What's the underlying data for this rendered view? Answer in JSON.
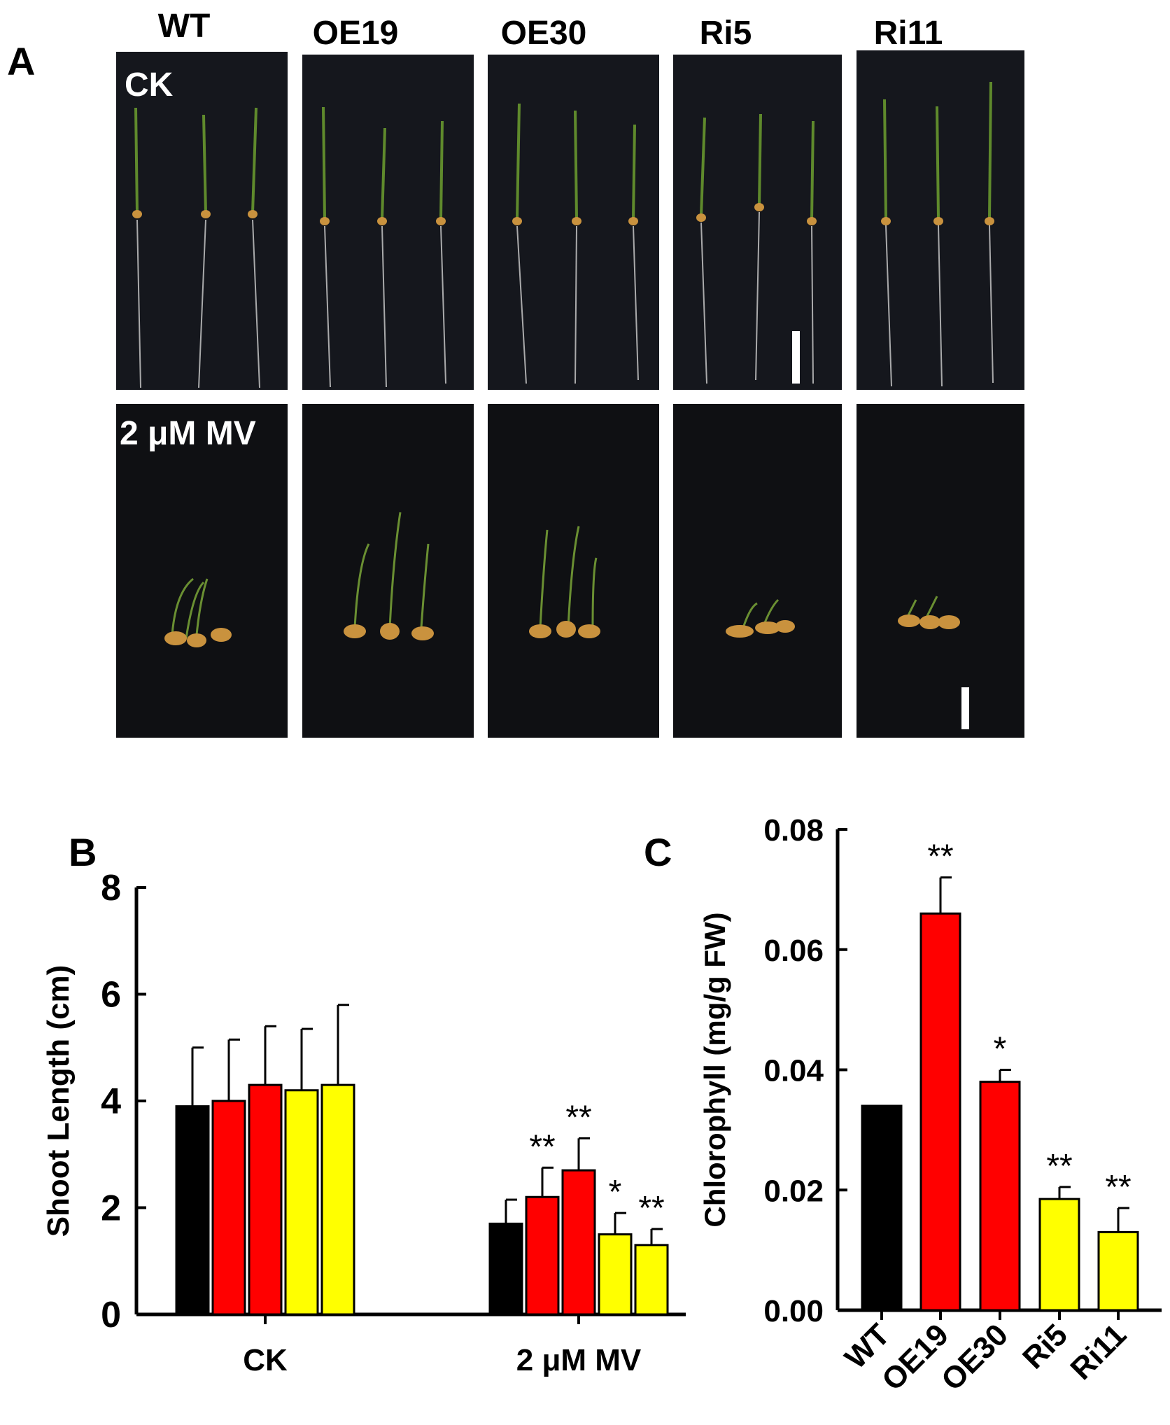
{
  "panel_labels": {
    "a": "A",
    "b": "B",
    "c": "C"
  },
  "genotypes": [
    "WT",
    "OE19",
    "OE30",
    "Ri5",
    "Ri11"
  ],
  "conditions": [
    "CK",
    "2 μM MV"
  ],
  "colors": {
    "WT": "#000000",
    "OE19": "#ff0000",
    "OE30": "#ff0000",
    "Ri5": "#ffff00",
    "Ri11": "#ffff00",
    "photo_bg": "#15171d",
    "seedling_shoot": "#5f8a2c",
    "seed": "#c9923e"
  },
  "chart_data": [
    {
      "type": "bar",
      "panel": "B",
      "ylabel": "Shoot Length (cm)",
      "ylim": [
        0,
        8
      ],
      "yticks": [
        "0",
        "2",
        "4",
        "6",
        "8"
      ],
      "groups": [
        "CK",
        "2 μM MV"
      ],
      "series": [
        {
          "values": [
            3.9,
            1.7
          ],
          "errors": [
            1.1,
            0.45
          ],
          "sig": [
            "",
            ""
          ]
        },
        {
          "values": [
            4.0,
            2.2
          ],
          "errors": [
            1.15,
            0.55
          ],
          "sig": [
            "",
            "**"
          ]
        },
        {
          "values": [
            4.3,
            2.7
          ],
          "errors": [
            1.1,
            0.6
          ],
          "sig": [
            "",
            "**"
          ]
        },
        {
          "values": [
            4.2,
            1.5
          ],
          "errors": [
            1.15,
            0.4
          ],
          "sig": [
            "",
            "*"
          ]
        },
        {
          "values": [
            4.3,
            1.3
          ],
          "errors": [
            1.5,
            0.3
          ],
          "sig": [
            "",
            "**"
          ]
        }
      ]
    },
    {
      "type": "bar",
      "panel": "C",
      "ylabel": "Chlorophyll (mg/g FW)",
      "ylim": [
        0,
        0.08
      ],
      "yticks": [
        "0.00",
        "0.02",
        "0.04",
        "0.06",
        "0.08"
      ],
      "categories": [
        "WT",
        "OE19",
        "OE30",
        "Ri5",
        "Ri11"
      ],
      "values": [
        0.034,
        0.066,
        0.038,
        0.0185,
        0.013
      ],
      "errors": [
        0.0,
        0.006,
        0.002,
        0.002,
        0.004
      ],
      "sig": [
        "",
        "**",
        "*",
        "**",
        "**"
      ]
    }
  ]
}
